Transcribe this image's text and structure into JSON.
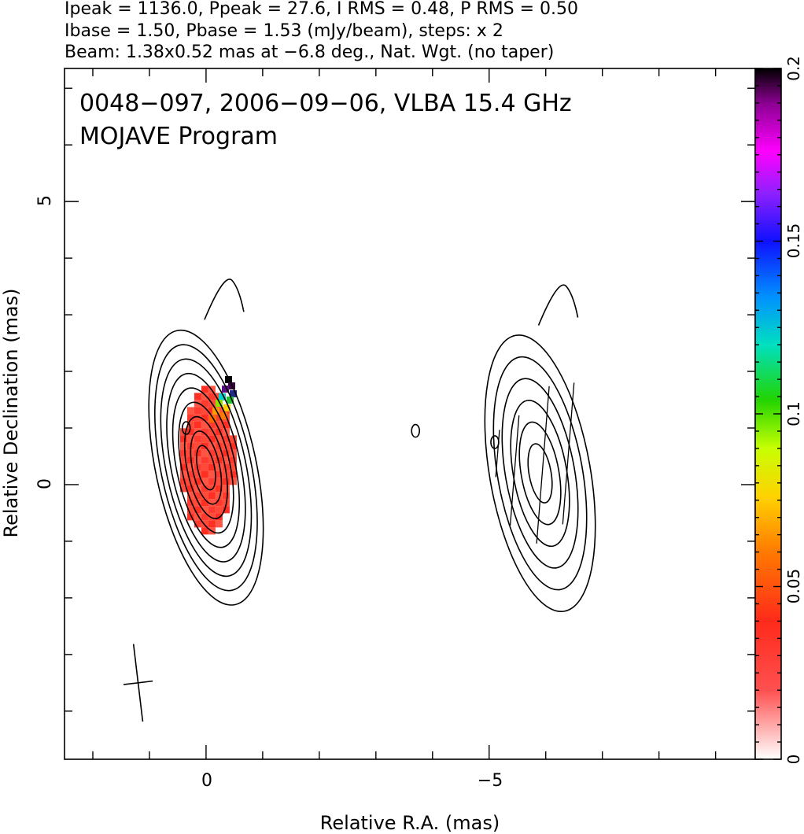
{
  "header": {
    "line1": "Ipeak = 1136.0, Ppeak = 27.6, I RMS = 0.48, P RMS = 0.50",
    "line2": "Ibase = 1.50, Pbase = 1.53 (mJy/beam), steps: x 2",
    "line3": "Beam: 1.38x0.52 mas at −6.8 deg., Nat. Wgt. (no taper)"
  },
  "plot_title": {
    "line1": "0048−097, 2006−09−06, VLBA 15.4 GHz",
    "line2": "MOJAVE Program"
  },
  "chart_data": {
    "type": "contour",
    "xlabel": "Relative R.A. (mas)",
    "ylabel": "Relative Declination (mas)",
    "xlim": [
      2.5,
      -9.7
    ],
    "ylim": [
      -4.85,
      7.35
    ],
    "x_ticks": [
      {
        "value": 0,
        "label": "0"
      },
      {
        "value": -5,
        "label": "−5"
      }
    ],
    "y_ticks": [
      {
        "value": 0,
        "label": "0"
      },
      {
        "value": 5,
        "label": "5"
      }
    ],
    "colorbar": {
      "range": [
        0,
        0.2
      ],
      "ticks": [
        {
          "value": 0,
          "label": "0"
        },
        {
          "value": 0.05,
          "label": "0.05"
        },
        {
          "value": 0.1,
          "label": "0.1"
        },
        {
          "value": 0.15,
          "label": "0.15"
        },
        {
          "value": 0.2,
          "label": "0.2"
        }
      ]
    },
    "beam": {
      "major_mas": 1.38,
      "minor_mas": 0.52,
      "pa_deg": -6.8,
      "center": [
        1.2,
        -3.5
      ]
    },
    "sources": [
      {
        "name": "core",
        "center": [
          0.0,
          0.3
        ],
        "pa_deg": -12,
        "contour_count": 9
      },
      {
        "name": "image",
        "center": [
          -5.9,
          0.2
        ],
        "pa_deg": -10,
        "contour_count": 6
      }
    ]
  }
}
